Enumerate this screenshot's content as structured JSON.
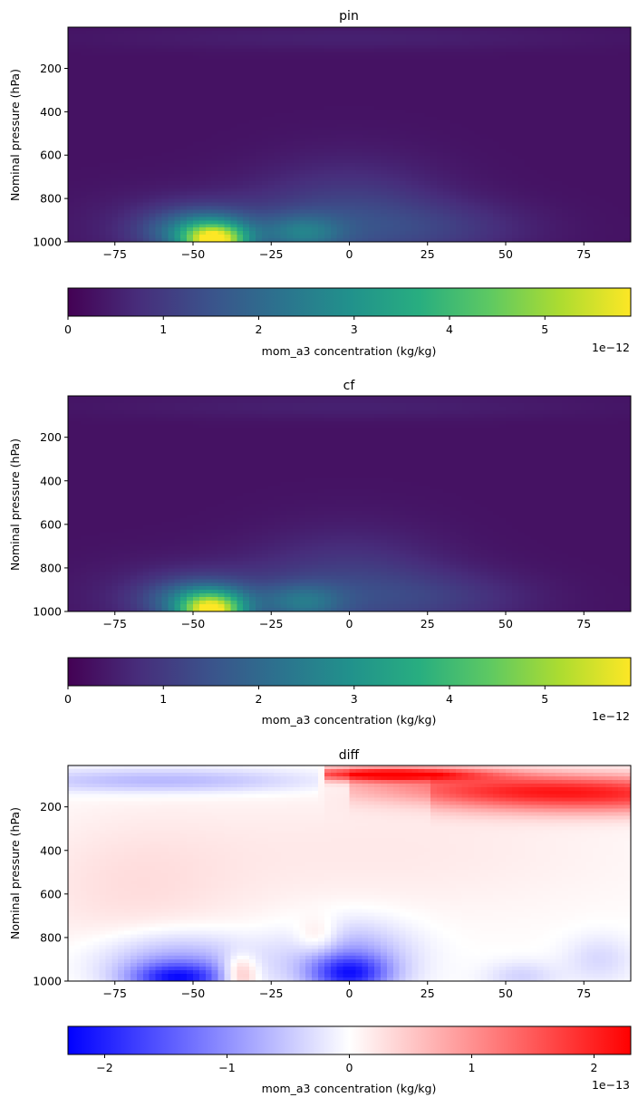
{
  "chart_data": [
    {
      "type": "heatmap",
      "title": "pin",
      "ylabel": "Nominal pressure (hPa)",
      "xlabel": "",
      "xlim": [
        -90,
        90
      ],
      "ylim": [
        1000,
        10
      ],
      "xticks": [
        -75,
        -50,
        -25,
        0,
        25,
        50,
        75
      ],
      "yticks": [
        200,
        400,
        600,
        800,
        1000
      ],
      "colormap": "viridis",
      "colorbar": {
        "label": "mom_a3 concentration (kg/kg)",
        "range": [
          0,
          5.9
        ],
        "ticks": [
          0,
          1,
          2,
          3,
          4,
          5
        ],
        "multiplier": "1e−12"
      },
      "features": [
        {
          "lat": -43,
          "p": 990,
          "value": 5.9
        },
        {
          "lat": -48,
          "p": 940,
          "value": 4.2
        },
        {
          "lat": -15,
          "p": 950,
          "value": 2.6
        },
        {
          "lat": 0,
          "p": 900,
          "value": 1.5
        },
        {
          "lat": 0,
          "p": 40,
          "value": 0.6
        }
      ]
    },
    {
      "type": "heatmap",
      "title": "cf",
      "ylabel": "Nominal pressure (hPa)",
      "xlabel": "",
      "xlim": [
        -90,
        90
      ],
      "ylim": [
        1000,
        10
      ],
      "xticks": [
        -75,
        -50,
        -25,
        0,
        25,
        50,
        75
      ],
      "yticks": [
        200,
        400,
        600,
        800,
        1000
      ],
      "colormap": "viridis",
      "colorbar": {
        "label": "mom_a3 concentration (kg/kg)",
        "range": [
          0,
          5.9
        ],
        "ticks": [
          0,
          1,
          2,
          3,
          4,
          5
        ],
        "multiplier": "1e−12"
      },
      "features": [
        {
          "lat": -44,
          "p": 990,
          "value": 5.8
        },
        {
          "lat": -48,
          "p": 940,
          "value": 4.0
        },
        {
          "lat": -15,
          "p": 950,
          "value": 2.5
        },
        {
          "lat": 0,
          "p": 900,
          "value": 1.4
        },
        {
          "lat": 0,
          "p": 40,
          "value": 0.5
        }
      ]
    },
    {
      "type": "heatmap",
      "title": "diff",
      "ylabel": "Nominal pressure (hPa)",
      "xlabel": "",
      "xlim": [
        -90,
        90
      ],
      "ylim": [
        1000,
        10
      ],
      "xticks": [
        -75,
        -50,
        -25,
        0,
        25,
        50,
        75
      ],
      "yticks": [
        200,
        400,
        600,
        800,
        1000
      ],
      "colormap": "bwr",
      "colorbar": {
        "label": "mom_a3 concentration (kg/kg)",
        "range": [
          -2.3,
          2.3
        ],
        "ticks": [
          -2,
          -1,
          0,
          1,
          2
        ],
        "multiplier": "1e−13"
      },
      "features": [
        {
          "lat": 10,
          "p": 50,
          "value": 2.2
        },
        {
          "lat": 70,
          "p": 150,
          "value": 1.6
        },
        {
          "lat": -60,
          "p": 90,
          "value": -0.7
        },
        {
          "lat": -55,
          "p": 990,
          "value": -1.8
        },
        {
          "lat": 0,
          "p": 960,
          "value": -1.5
        },
        {
          "lat": -35,
          "p": 960,
          "value": 0.8
        }
      ]
    }
  ]
}
